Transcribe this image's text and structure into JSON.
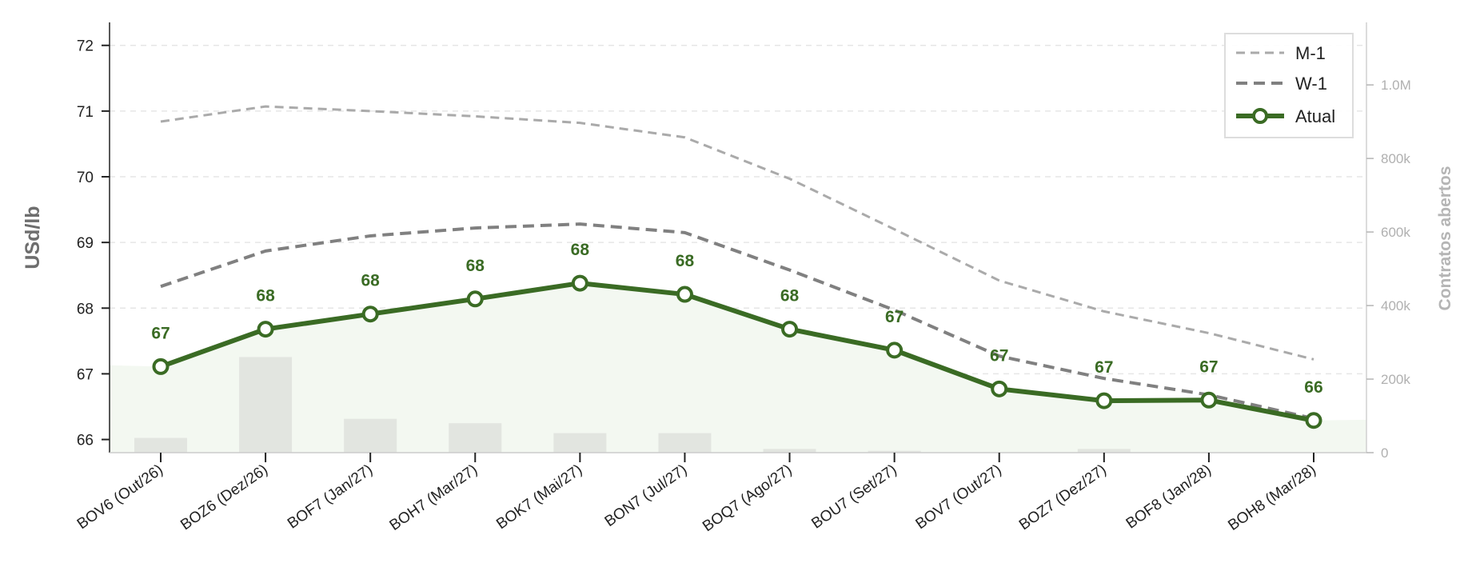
{
  "chart_data": {
    "type": "line",
    "categories": [
      "BOV6 (Out/26)",
      "BOZ6 (Dez/26)",
      "BOF7 (Jan/27)",
      "BOH7 (Mar/27)",
      "BOK7 (Mai/27)",
      "BON7 (Jul/27)",
      "BOQ7 (Ago/27)",
      "BOU7 (Set/27)",
      "BOV7 (Out/27)",
      "BOZ7 (Dez/27)",
      "BOF8 (Jan/28)",
      "BOH8 (Mar/28)"
    ],
    "ylabel": "USd/lb",
    "y2label": "Contratos abertos",
    "ylim": [
      65.8,
      72.35
    ],
    "yticks": [
      "66",
      "67",
      "68",
      "69",
      "70",
      "71",
      "72"
    ],
    "y2lim": [
      0,
      1170000
    ],
    "y2ticks": [
      {
        "value": 0,
        "label": "0"
      },
      {
        "value": 200000,
        "label": "200k"
      },
      {
        "value": 400000,
        "label": "400k"
      },
      {
        "value": 600000,
        "label": "600k"
      },
      {
        "value": 800000,
        "label": "800k"
      },
      {
        "value": 1000000,
        "label": "1.0M"
      }
    ],
    "grid": true,
    "legend_position": "top-right",
    "series": [
      {
        "name": "M-1",
        "style": "dashed-light",
        "color": "#aaaaaa",
        "values": [
          70.84,
          71.07,
          71.0,
          70.92,
          70.82,
          70.6,
          69.97,
          69.2,
          68.42,
          67.95,
          67.62,
          67.22
        ]
      },
      {
        "name": "W-1",
        "style": "dashed",
        "color": "#808080",
        "values": [
          68.33,
          68.87,
          69.1,
          69.22,
          69.28,
          69.15,
          68.58,
          67.97,
          67.27,
          66.93,
          66.68,
          66.32
        ]
      },
      {
        "name": "Atual",
        "style": "solid-marker",
        "color": "#3a6b24",
        "values": [
          67.11,
          67.68,
          67.91,
          68.14,
          68.38,
          68.21,
          67.68,
          67.36,
          66.77,
          66.59,
          66.6,
          66.29
        ],
        "labels": [
          "67",
          "68",
          "68",
          "68",
          "68",
          "68",
          "68",
          "67",
          "67",
          "67",
          "67",
          "66"
        ]
      }
    ],
    "open_interest": {
      "color": "#e2e5e0",
      "values": [
        40000,
        260000,
        92000,
        80000,
        53000,
        53000,
        10000,
        5000,
        0,
        10000,
        0,
        0
      ]
    },
    "fill": {
      "color": "#f3f8f1",
      "left_edge_value": 67.13,
      "right_edge_value": 66.3
    }
  }
}
